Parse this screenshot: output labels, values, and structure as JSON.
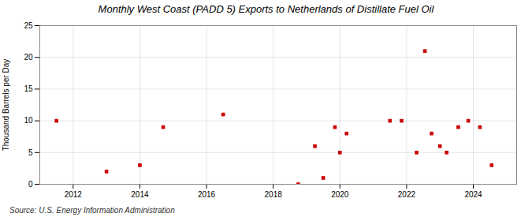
{
  "chart_data": {
    "type": "scatter",
    "title": "Monthly West Coast (PADD 5) Exports to Netherlands of Distillate Fuel Oil",
    "ylabel": "Thousand Barrels per Day",
    "annotation": "Source: U.S. Energy Information Administration",
    "x": [
      2011.5,
      2013.0,
      2014.0,
      2014.7,
      2016.5,
      2018.75,
      2019.25,
      2019.5,
      2019.85,
      2020.0,
      2020.2,
      2021.5,
      2021.85,
      2022.3,
      2022.55,
      2022.75,
      2023.0,
      2023.2,
      2023.55,
      2023.85,
      2024.2,
      2024.55
    ],
    "values": [
      10,
      2,
      3,
      9,
      11,
      0,
      6,
      1,
      9,
      5,
      8,
      10,
      10,
      5,
      21,
      8,
      6,
      5,
      9,
      10,
      9,
      3
    ],
    "color": "#cc0000",
    "marker": "square",
    "xlim": [
      2011.0,
      2025.3
    ],
    "xticks": [
      2012,
      2014,
      2016,
      2018,
      2020,
      2022,
      2024
    ],
    "ylim": [
      0,
      25
    ],
    "yticks": [
      0,
      5,
      10,
      15,
      20,
      25
    ],
    "grid": true
  }
}
